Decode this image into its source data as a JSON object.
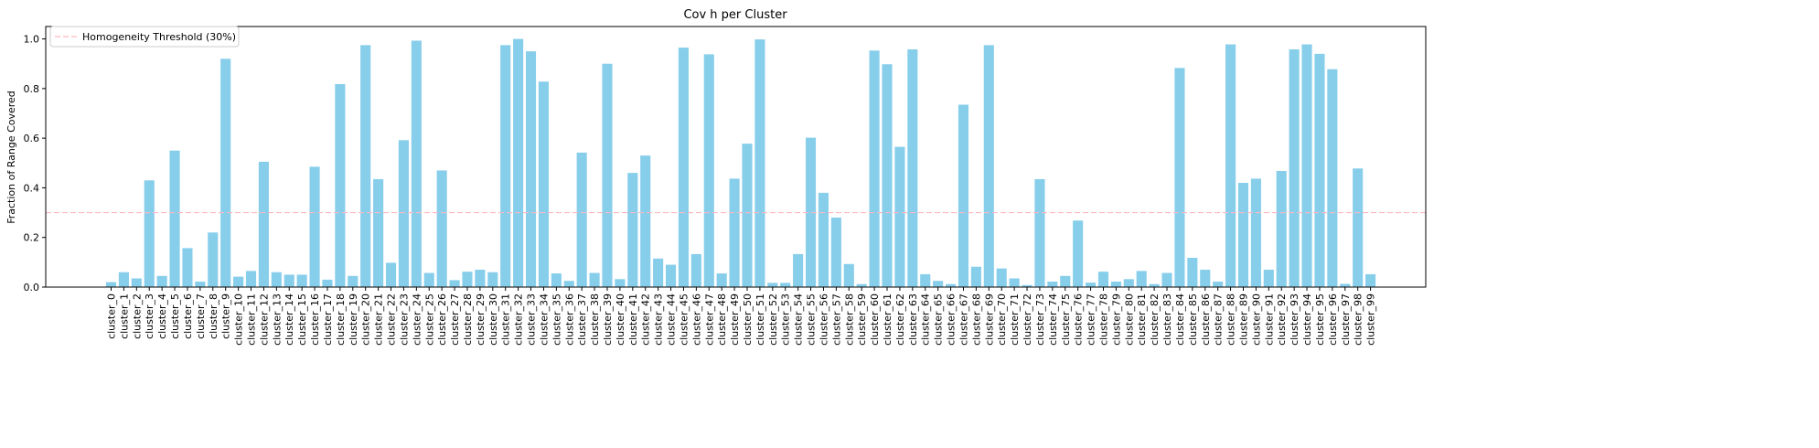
{
  "chart_data": {
    "type": "bar",
    "title": "Cov h per Cluster",
    "xlabel": "",
    "ylabel": "Fraction of Range Covered",
    "ylim": [
      0,
      1.05
    ],
    "yticks": [
      "0.0",
      "0.2",
      "0.4",
      "0.6",
      "0.8",
      "1.0"
    ],
    "bar_color": "#87CEEB",
    "grid": false,
    "legend": {
      "position": "top-left",
      "entries": [
        "Homogeneity Threshold (30%)"
      ]
    },
    "threshold": {
      "name": "Homogeneity Threshold (30%)",
      "value": 0.3,
      "color": "#FFB6C1",
      "style": "dashed"
    },
    "categories": [
      "cluster_0",
      "cluster_1",
      "cluster_2",
      "cluster_3",
      "cluster_4",
      "cluster_5",
      "cluster_6",
      "cluster_7",
      "cluster_8",
      "cluster_9",
      "cluster_10",
      "cluster_11",
      "cluster_12",
      "cluster_13",
      "cluster_14",
      "cluster_15",
      "cluster_16",
      "cluster_17",
      "cluster_18",
      "cluster_19",
      "cluster_20",
      "cluster_21",
      "cluster_22",
      "cluster_23",
      "cluster_24",
      "cluster_25",
      "cluster_26",
      "cluster_27",
      "cluster_28",
      "cluster_29",
      "cluster_30",
      "cluster_31",
      "cluster_32",
      "cluster_33",
      "cluster_34",
      "cluster_35",
      "cluster_36",
      "cluster_37",
      "cluster_38",
      "cluster_39",
      "cluster_40",
      "cluster_41",
      "cluster_42",
      "cluster_43",
      "cluster_44",
      "cluster_45",
      "cluster_46",
      "cluster_47",
      "cluster_48",
      "cluster_49",
      "cluster_50",
      "cluster_51",
      "cluster_52",
      "cluster_53",
      "cluster_54",
      "cluster_55",
      "cluster_56",
      "cluster_57",
      "cluster_58",
      "cluster_59",
      "cluster_60",
      "cluster_61",
      "cluster_62",
      "cluster_63",
      "cluster_64",
      "cluster_65",
      "cluster_66",
      "cluster_67",
      "cluster_68",
      "cluster_69",
      "cluster_70",
      "cluster_71",
      "cluster_72",
      "cluster_73",
      "cluster_74",
      "cluster_75",
      "cluster_76",
      "cluster_77",
      "cluster_78",
      "cluster_79",
      "cluster_80",
      "cluster_81",
      "cluster_82",
      "cluster_83",
      "cluster_84",
      "cluster_85",
      "cluster_86",
      "cluster_87",
      "cluster_88",
      "cluster_89",
      "cluster_90",
      "cluster_91",
      "cluster_92",
      "cluster_93",
      "cluster_94",
      "cluster_95",
      "cluster_96",
      "cluster_97",
      "cluster_98",
      "cluster_99"
    ],
    "values": [
      0.02,
      0.06,
      0.035,
      0.43,
      0.045,
      0.55,
      0.157,
      0.022,
      0.22,
      0.92,
      0.042,
      0.065,
      0.505,
      0.06,
      0.05,
      0.05,
      0.485,
      0.03,
      0.818,
      0.045,
      0.975,
      0.435,
      0.098,
      0.592,
      0.993,
      0.057,
      0.47,
      0.028,
      0.062,
      0.07,
      0.06,
      0.975,
      1.0,
      0.95,
      0.828,
      0.055,
      0.025,
      0.542,
      0.057,
      0.9,
      0.032,
      0.46,
      0.53,
      0.115,
      0.09,
      0.965,
      0.133,
      0.938,
      0.055,
      0.437,
      0.578,
      0.998,
      0.017,
      0.017,
      0.133,
      0.602,
      0.38,
      0.28,
      0.093,
      0.012,
      0.953,
      0.898,
      0.565,
      0.958,
      0.052,
      0.025,
      0.012,
      0.735,
      0.082,
      0.975,
      0.075,
      0.035,
      0.008,
      0.435,
      0.022,
      0.045,
      0.268,
      0.018,
      0.062,
      0.022,
      0.032,
      0.065,
      0.012,
      0.057,
      0.883,
      0.118,
      0.07,
      0.022,
      0.978,
      0.42,
      0.437,
      0.07,
      0.468,
      0.958,
      0.978,
      0.94,
      0.878,
      0.013,
      0.478,
      0.052
    ]
  }
}
